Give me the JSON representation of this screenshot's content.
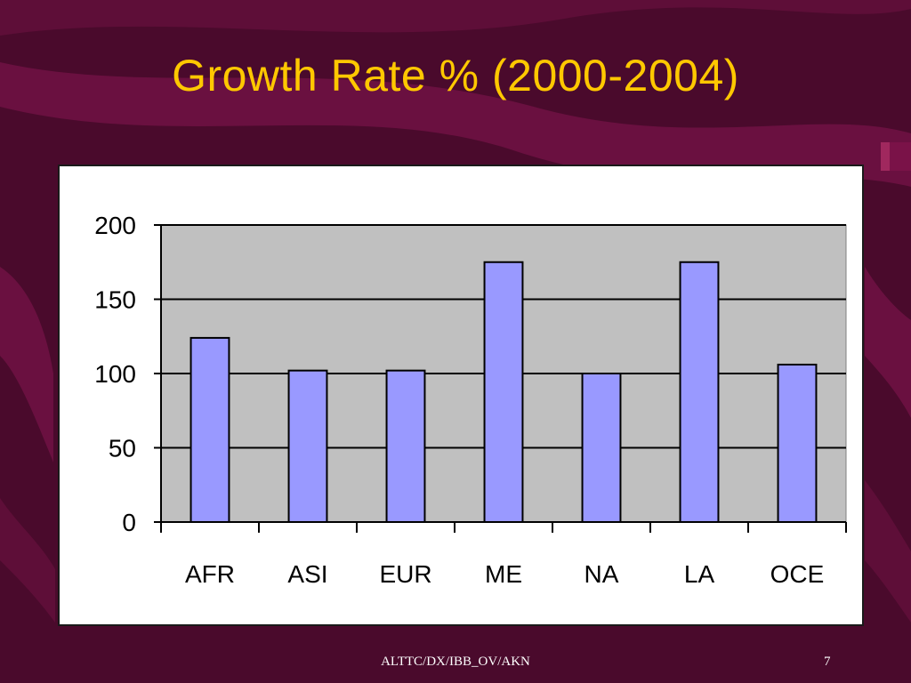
{
  "slide": {
    "title": "Growth Rate % (2000-2004)",
    "footer": "ALTTC/DX/IBB_OV/AKN",
    "page_number": "7"
  },
  "colors": {
    "background": "#4a0a2c",
    "ribbon": "#7a1248",
    "title": "#ffc800",
    "plot_area": "#c0c0c0",
    "bar_fill": "#9999ff",
    "bar_stroke": "#000000"
  },
  "chart_data": {
    "type": "bar",
    "categories": [
      "AFR",
      "ASI",
      "EUR",
      "ME",
      "NA",
      "LA",
      "OCE"
    ],
    "values": [
      124,
      102,
      102,
      175,
      100,
      175,
      106
    ],
    "ylim": [
      0,
      200
    ],
    "yticks": [
      0,
      50,
      100,
      150,
      200
    ],
    "grid": true,
    "legend": "none",
    "title": "",
    "xlabel": "",
    "ylabel": ""
  }
}
